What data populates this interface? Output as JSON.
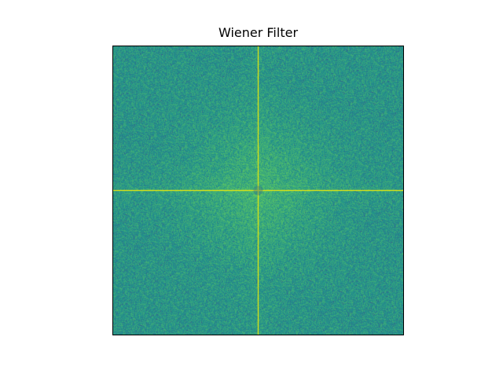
{
  "figure": {
    "title": "Wiener Filter"
  },
  "image": {
    "description_type": "frequency-spectrum",
    "colormap": "viridis",
    "background_color": "#2a8a85",
    "center_line_color": "#d7e219",
    "accent_colors": [
      "#2a8a85",
      "#3d9a79",
      "#22a884",
      "#7ad151",
      "#fde725",
      "#3b528b"
    ]
  }
}
